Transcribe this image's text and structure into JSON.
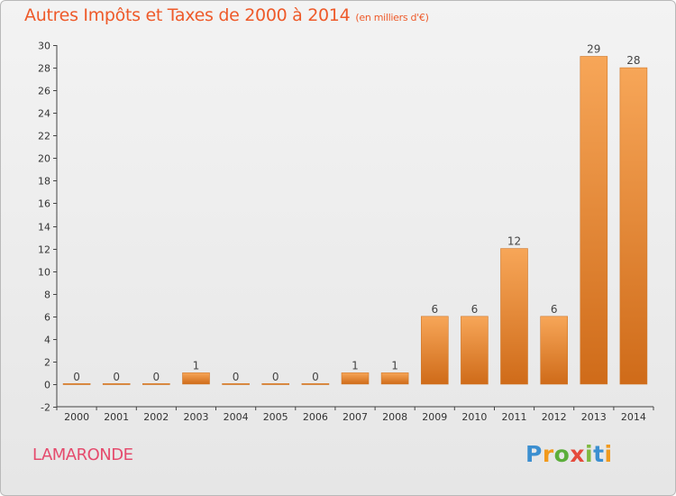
{
  "title": "Autres Impôts et Taxes de 2000 à 2014",
  "unit_note": "(en milliers d'€)",
  "commune": "LAMARONDE",
  "logo": {
    "letters": [
      "P",
      "r",
      "o",
      "x",
      "i",
      "t",
      "i"
    ],
    "colors": [
      "#3c8fd0",
      "#f19a1d",
      "#5cae3b",
      "#e54b3c",
      "#7fb940",
      "#3c8fd0",
      "#f19a1d"
    ]
  },
  "colors": {
    "bar_light": "#f7a658",
    "bar_dark": "#cf6b19",
    "title": "#ee5a2a",
    "commune": "#e54b6d"
  },
  "chart_data": {
    "type": "bar",
    "categories": [
      "2000",
      "2001",
      "2002",
      "2003",
      "2004",
      "2005",
      "2006",
      "2007",
      "2008",
      "2009",
      "2010",
      "2011",
      "2012",
      "2013",
      "2014"
    ],
    "values": [
      0,
      0,
      0,
      1,
      0,
      0,
      0,
      1,
      1,
      6,
      6,
      12,
      6,
      29,
      28
    ],
    "title": "Autres Impôts et Taxes de 2000 à 2014",
    "subtitle": "(en milliers d'€)",
    "xlabel": "",
    "ylabel": "",
    "ylim": [
      -2,
      30
    ],
    "yticks": [
      -2,
      0,
      2,
      4,
      6,
      8,
      10,
      12,
      14,
      16,
      18,
      20,
      22,
      24,
      26,
      28,
      30
    ],
    "grid": false,
    "legend": "none"
  }
}
